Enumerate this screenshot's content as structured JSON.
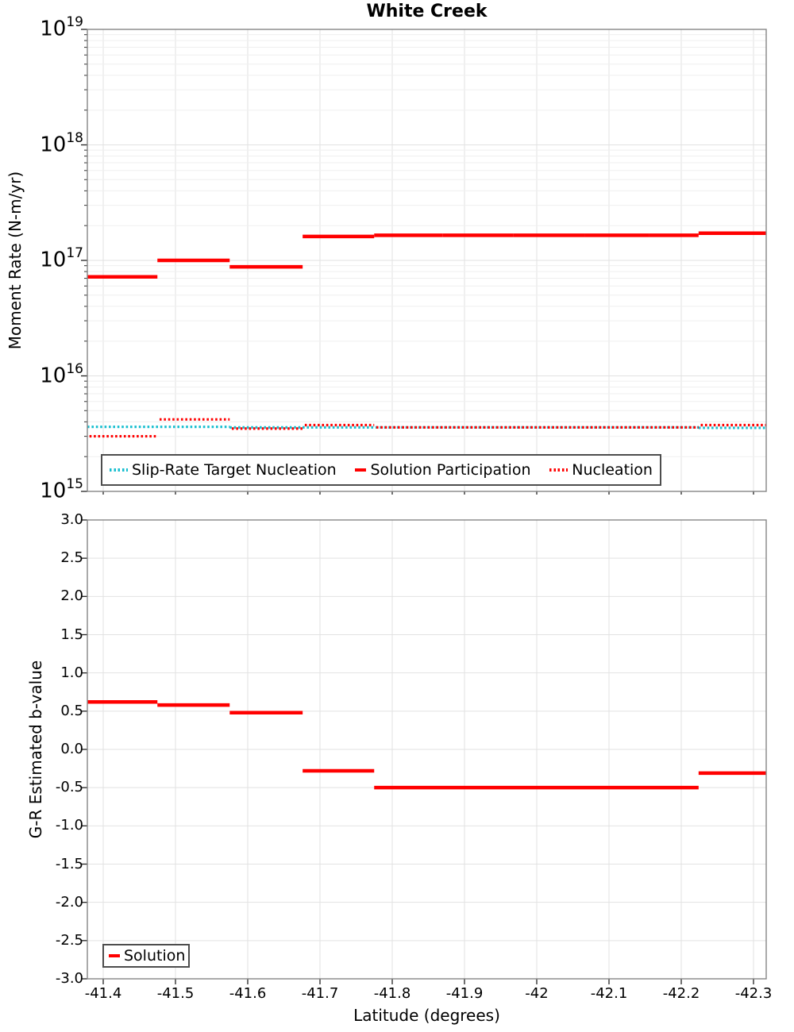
{
  "title": "White Creek",
  "chart_data": [
    {
      "type": "line",
      "subtype": "step-segments",
      "title": "White Creek",
      "xlabel": "",
      "ylabel": "Moment Rate (N-m/yr)",
      "yscale": "log",
      "ylim": [
        1000000000000000.0,
        1e+19
      ],
      "xlim": [
        -41.378,
        -42.318
      ],
      "x_reversed": true,
      "grid": "both-with-log-minors",
      "legend_position": "lower-left-inside",
      "y_tick_exponents": [
        19,
        18,
        17,
        16,
        15
      ],
      "x_tick_labels": [
        "-41.4",
        "-41.5",
        "-41.6",
        "-41.7",
        "-41.8",
        "-41.9",
        "-42",
        "-42.1",
        "-42.2",
        "-42.3"
      ],
      "x_ticks_shown": false,
      "series": [
        {
          "name": "Slip-Rate Target Nucleation",
          "color": "#17becf",
          "style": "dotted",
          "segments": [
            [
              -41.378,
              -41.575,
              3620000000000000.0
            ],
            [
              -41.575,
              -42.224,
              3580000000000000.0
            ],
            [
              -42.224,
              -42.318,
              3550000000000000.0
            ]
          ]
        },
        {
          "name": "Solution Participation",
          "color": "#ff0000",
          "style": "solid",
          "segments": [
            [
              -41.378,
              -41.475,
              7.2e+16
            ],
            [
              -41.475,
              -41.575,
              1e+17
            ],
            [
              -41.575,
              -41.676,
              8.8e+16
            ],
            [
              -41.676,
              -41.775,
              1.61e+17
            ],
            [
              -41.775,
              -41.87,
              1.65e+17
            ],
            [
              -41.87,
              -41.968,
              1.65e+17
            ],
            [
              -41.968,
              -42.067,
              1.65e+17
            ],
            [
              -42.067,
              -42.155,
              1.65e+17
            ],
            [
              -42.155,
              -42.224,
              1.65e+17
            ],
            [
              -42.224,
              -42.318,
              1.72e+17
            ]
          ]
        },
        {
          "name": "Nucleation",
          "color": "#ff0000",
          "style": "dotted",
          "segments": [
            [
              -41.378,
              -41.475,
              3000000000000000.0
            ],
            [
              -41.475,
              -41.575,
              4200000000000000.0
            ],
            [
              -41.575,
              -41.676,
              3500000000000000.0
            ],
            [
              -41.676,
              -41.775,
              3750000000000000.0
            ],
            [
              -41.775,
              -42.224,
              3580000000000000.0
            ],
            [
              -42.224,
              -42.318,
              3750000000000000.0
            ]
          ]
        }
      ]
    },
    {
      "type": "line",
      "subtype": "step-segments",
      "title": "",
      "xlabel": "Latitude (degrees)",
      "ylabel": "G-R Estimated b-value",
      "yscale": "linear",
      "ylim": [
        -3.0,
        3.0
      ],
      "xlim": [
        -41.378,
        -42.318
      ],
      "x_reversed": true,
      "grid": "both",
      "legend_position": "lower-left-inside",
      "y_tick_labels": [
        "3.0",
        "2.5",
        "2.0",
        "1.5",
        "1.0",
        "0.5",
        "0.0",
        "-0.5",
        "-1.0",
        "-1.5",
        "-2.0",
        "-2.5",
        "-3.0"
      ],
      "x_tick_labels": [
        "-41.4",
        "-41.5",
        "-41.6",
        "-41.7",
        "-41.8",
        "-41.9",
        "-42",
        "-42.1",
        "-42.2",
        "-42.3"
      ],
      "x_ticks_shown": true,
      "series": [
        {
          "name": "Solution",
          "color": "#ff0000",
          "style": "solid",
          "segments": [
            [
              -41.378,
              -41.475,
              0.62
            ],
            [
              -41.475,
              -41.575,
              0.58
            ],
            [
              -41.575,
              -41.676,
              0.48
            ],
            [
              -41.676,
              -41.775,
              -0.28
            ],
            [
              -41.775,
              -42.224,
              -0.5
            ],
            [
              -42.224,
              -42.318,
              -0.31
            ]
          ]
        }
      ]
    }
  ],
  "colors": {
    "solution_red": "#ff0000",
    "slip_rate_teal": "#17becf",
    "grid_major": "#e2e2e2",
    "grid_minor": "#efefef",
    "spine": "#858585",
    "legend_border": "#4d4d4d"
  }
}
